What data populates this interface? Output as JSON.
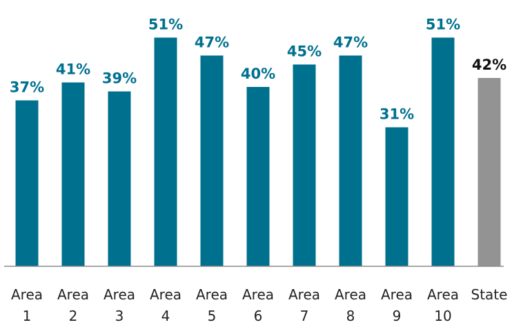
{
  "chart_data": {
    "type": "bar",
    "categories": [
      [
        "Area",
        "1"
      ],
      [
        "Area",
        "2"
      ],
      [
        "Area",
        "3"
      ],
      [
        "Area",
        "4"
      ],
      [
        "Area",
        "5"
      ],
      [
        "Area",
        "6"
      ],
      [
        "Area",
        "7"
      ],
      [
        "Area",
        "8"
      ],
      [
        "Area",
        "9"
      ],
      [
        "Area",
        "10"
      ],
      [
        "State"
      ]
    ],
    "values": [
      37,
      41,
      39,
      51,
      47,
      40,
      45,
      47,
      31,
      51,
      42
    ],
    "data_labels": [
      "37%",
      "41%",
      "39%",
      "51%",
      "47%",
      "40%",
      "45%",
      "47%",
      "31%",
      "51%",
      "42%"
    ],
    "ylim": [
      0,
      100
    ],
    "grid": false,
    "colors": {
      "area_bar": "#00708F",
      "state_bar": "#939393",
      "area_label": "#00708F",
      "state_label": "#111111",
      "axis": "#8a8a8a"
    },
    "highlight_index": 10
  }
}
